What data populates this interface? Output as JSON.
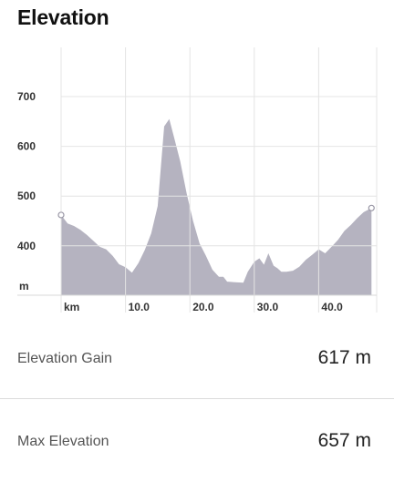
{
  "title": "Elevation",
  "chart_data": {
    "type": "area",
    "x_unit_label": "km",
    "y_unit_label": "m",
    "xlim": [
      0,
      48.5
    ],
    "ylim": [
      300,
      800
    ],
    "x_ticks": [
      10,
      20,
      30,
      40
    ],
    "x_tick_labels": [
      "10.0",
      "20.0",
      "30.0",
      "40.0"
    ],
    "y_ticks": [
      400,
      500,
      600,
      700
    ],
    "y_tick_labels": [
      "400",
      "500",
      "600",
      "700"
    ],
    "grid": true,
    "fill_color": "#b5b3c0",
    "x": [
      0,
      1,
      2,
      3,
      4,
      5,
      6,
      7,
      8,
      9,
      10,
      11,
      12,
      13,
      14,
      15,
      16,
      16.8,
      17.5,
      18.5,
      19.5,
      20.5,
      21.5,
      22.5,
      23.5,
      24.5,
      25.2,
      25.8,
      27,
      28.3,
      29,
      30,
      30.8,
      31.5,
      32.2,
      33,
      33.6,
      34.2,
      35,
      36,
      37,
      38,
      39,
      40,
      41,
      42,
      43,
      44,
      45,
      46,
      47,
      48.2
    ],
    "y": [
      462,
      445,
      440,
      432,
      422,
      410,
      398,
      393,
      380,
      363,
      357,
      346,
      365,
      392,
      425,
      480,
      640,
      655,
      620,
      570,
      505,
      450,
      405,
      380,
      352,
      338,
      338,
      328,
      327,
      326,
      348,
      368,
      375,
      362,
      385,
      360,
      355,
      348,
      348,
      350,
      358,
      372,
      382,
      393,
      385,
      398,
      412,
      430,
      442,
      456,
      468,
      476
    ],
    "markers": [
      {
        "x": 0,
        "y": 462
      },
      {
        "x": 48.2,
        "y": 476
      }
    ]
  },
  "stats": [
    {
      "label": "Elevation Gain",
      "value": "617 m"
    },
    {
      "label": "Max Elevation",
      "value": "657 m"
    }
  ]
}
